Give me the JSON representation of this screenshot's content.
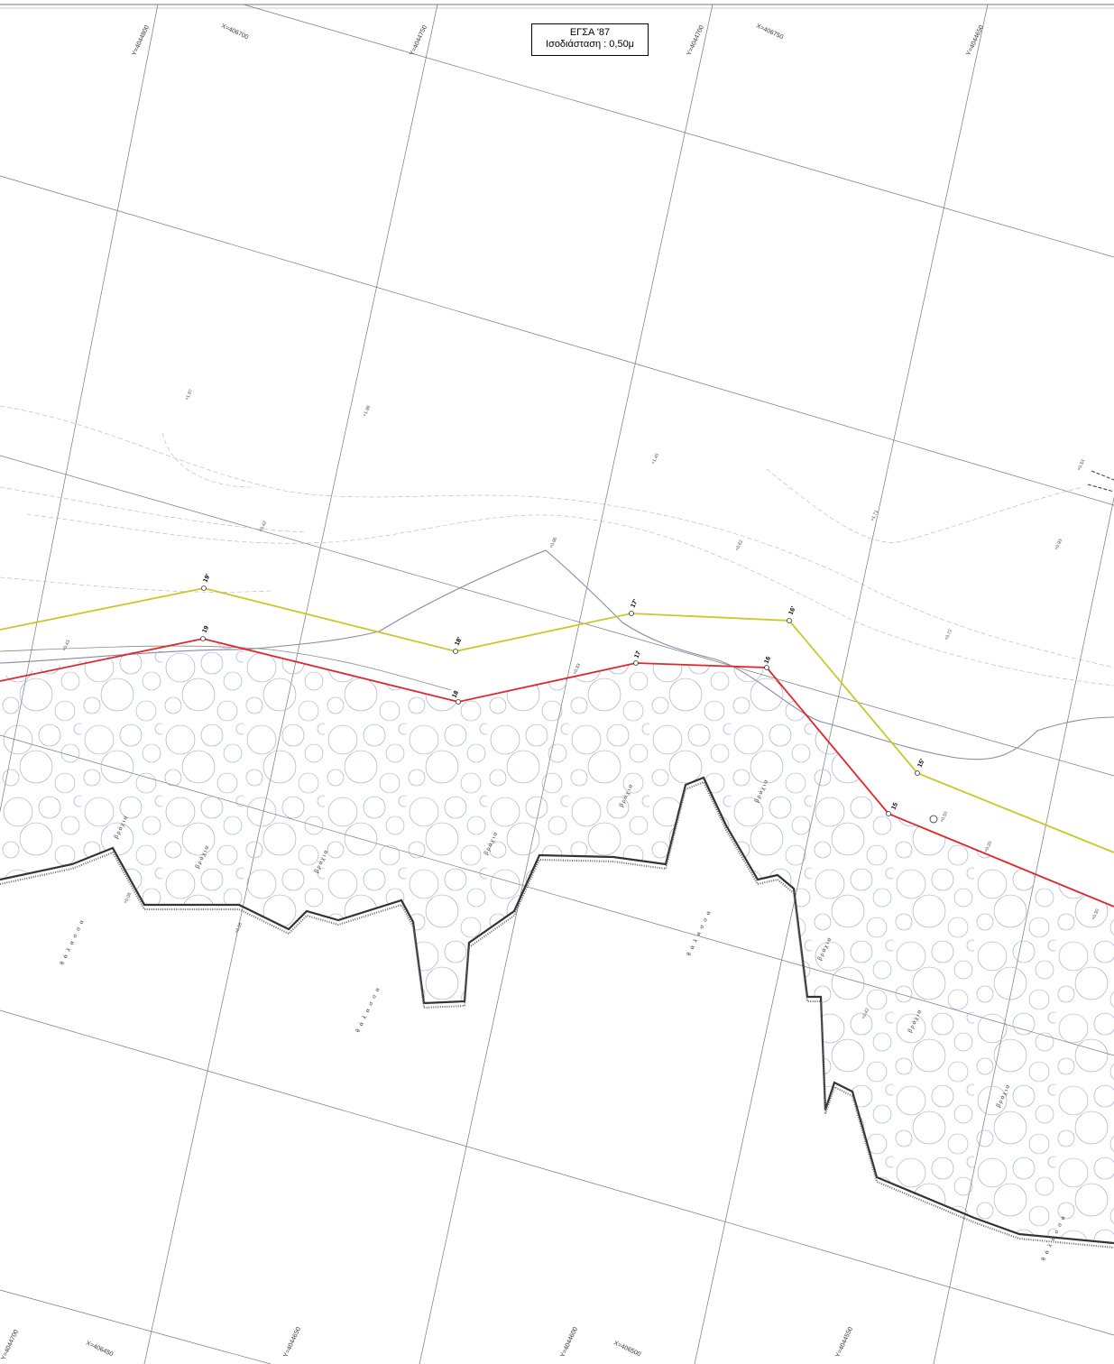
{
  "title": {
    "line1": "ΕΓΣΑ '87",
    "line2": "Ισοδιάσταση : 0,50μ"
  },
  "grid_labels_top": [
    "Y=4044800",
    "X=406700",
    "Y=4044750",
    "Y=4044700",
    "X=406750",
    "Y=4044650"
  ],
  "grid_labels_bottom": [
    "Y=4044700",
    "X=406450",
    "Y=4044650",
    "Y=4044600",
    "X=406500",
    "Y=4044550"
  ],
  "point_labels_yellow": [
    "19'",
    "18'",
    "17'",
    "16'",
    "15'"
  ],
  "point_labels_red": [
    "19",
    "18",
    "17",
    "16",
    "15"
  ],
  "area_words": {
    "sea": "θ ά λ α σ σ α",
    "rocks": "βράχια"
  },
  "elevations": [
    "+1.87",
    "+1.98",
    "+1.45",
    "+1.71",
    "+0.33",
    "+0.96",
    "+0.62",
    "+0.42",
    "+0.93",
    "+0.72",
    "+0.43",
    "+0.33",
    "+0.26",
    "+0.50",
    "+0.20",
    "+0.42",
    "+0.08",
    "+0.30"
  ],
  "colors": {
    "yellow_line": "#c8c82a",
    "red_line": "#e0262a",
    "coast": "#333333",
    "grid": "#777777",
    "contour": "#9a9ab8"
  }
}
